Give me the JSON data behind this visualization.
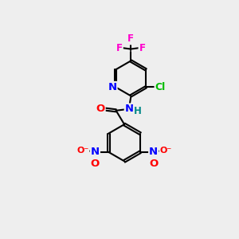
{
  "bg_color": "#eeeeee",
  "bond_color": "#000000",
  "bond_lw": 1.5,
  "atom_colors": {
    "N": "#0000ff",
    "O": "#ff0000",
    "F": "#ff00cc",
    "Cl": "#00bb00",
    "C": "#000000",
    "H": "#008888"
  },
  "font_size": 8.5
}
